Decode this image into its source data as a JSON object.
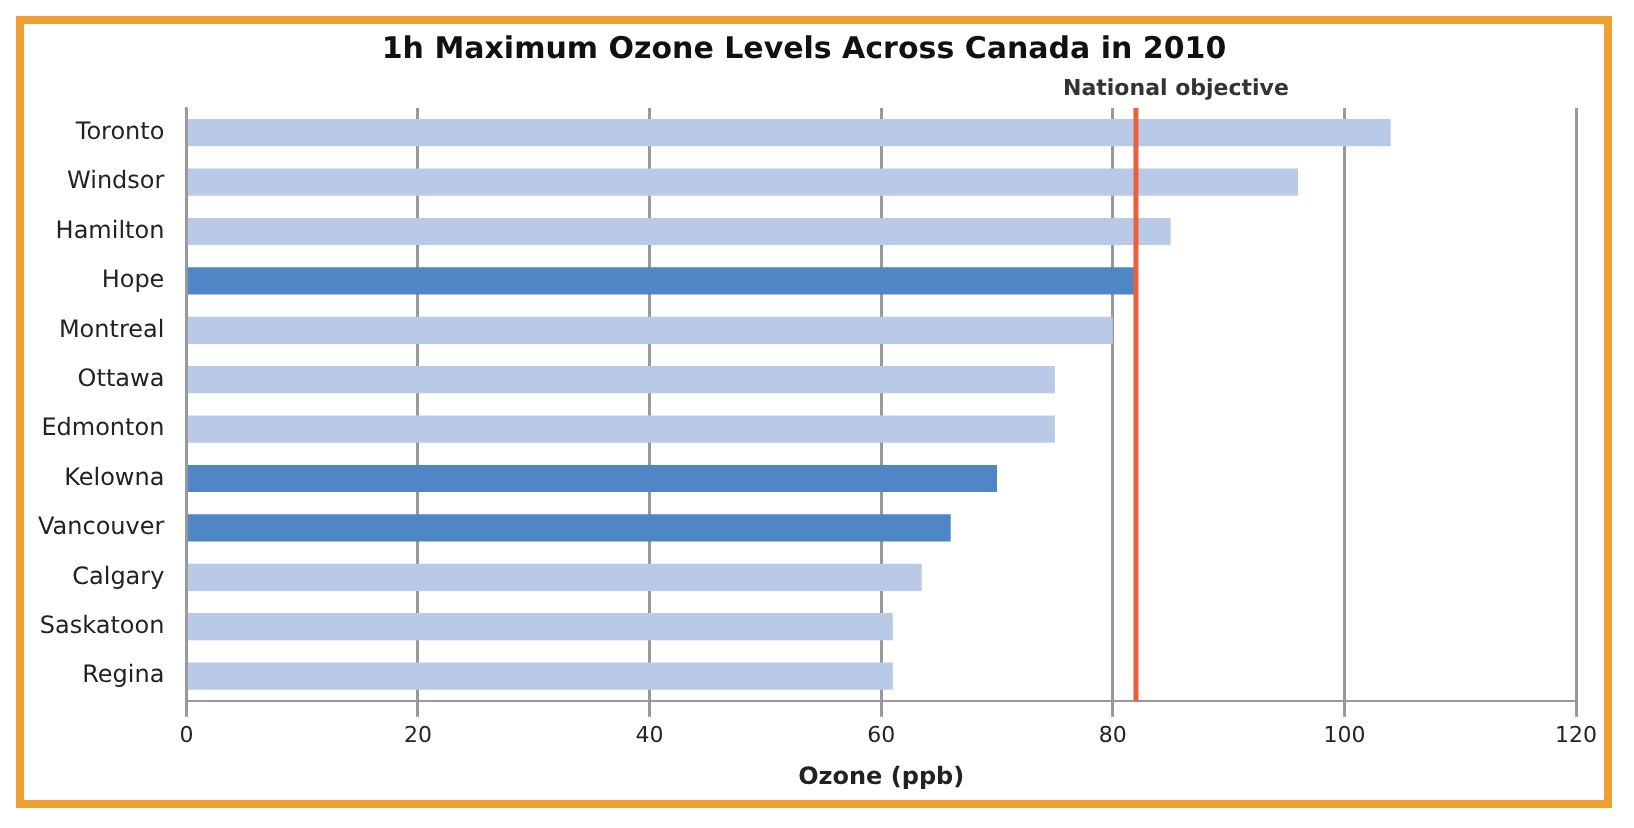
{
  "chart_data": {
    "type": "bar",
    "orientation": "horizontal",
    "title": "1h Maximum Ozone Levels Across Canada in 2010",
    "xlabel": "Ozone (ppb)",
    "categories": [
      "Toronto",
      "Windsor",
      "Hamilton",
      "Hope",
      "Montreal",
      "Ottawa",
      "Edmonton",
      "Kelowna",
      "Vancouver",
      "Calgary",
      "Saskatoon",
      "Regina"
    ],
    "values": [
      104,
      96,
      85,
      82,
      80,
      75,
      75,
      70,
      66,
      63.5,
      61,
      61
    ],
    "colors": [
      "#b9cae6",
      "#b9cae6",
      "#b9cae6",
      "#4f86c6",
      "#b9cae6",
      "#b9cae6",
      "#b9cae6",
      "#4f86c6",
      "#4f86c6",
      "#b9cae6",
      "#b9cae6",
      "#b9cae6"
    ],
    "xlim": [
      0,
      120
    ],
    "xticks": [
      0,
      20,
      40,
      60,
      80,
      100,
      120
    ],
    "grid": "x",
    "legend": false,
    "ref_lines": [
      {
        "axis": "x",
        "value": 82,
        "label": "National objective",
        "color": "#e8603c"
      }
    ]
  }
}
